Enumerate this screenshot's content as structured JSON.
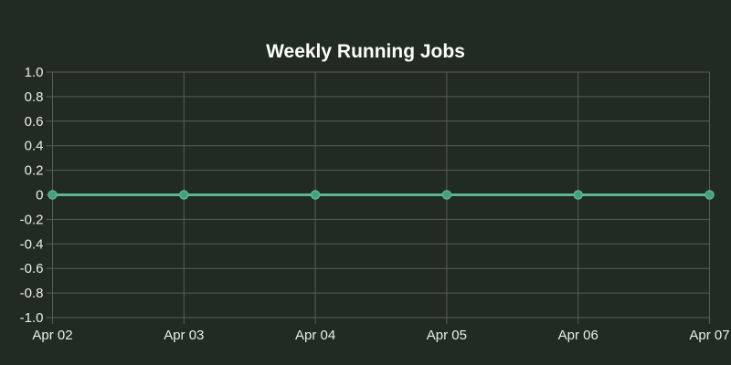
{
  "chart_data": {
    "type": "line",
    "title": "Weekly Running Jobs",
    "x": [
      "Apr 02",
      "Apr 03",
      "Apr 04",
      "Apr 05",
      "Apr 06",
      "Apr 07"
    ],
    "series": [
      {
        "name": "Running Jobs",
        "values": [
          0,
          0,
          0,
          0,
          0,
          0
        ]
      }
    ],
    "ylim": [
      -1.0,
      1.0
    ],
    "y_tick_labels": [
      "1.0",
      "0.8",
      "0.6",
      "0.4",
      "0.2",
      "0",
      "-0.2",
      "-0.4",
      "-0.6",
      "-0.8",
      "-1.0"
    ],
    "grid": true,
    "legend_position": "none",
    "colors": {
      "background": "#222b22",
      "grid": "#565e56",
      "tick_text": "#e9ece9",
      "title_text": "#fcfdfc",
      "line": "#5cb490",
      "point": "#43a17c"
    }
  }
}
